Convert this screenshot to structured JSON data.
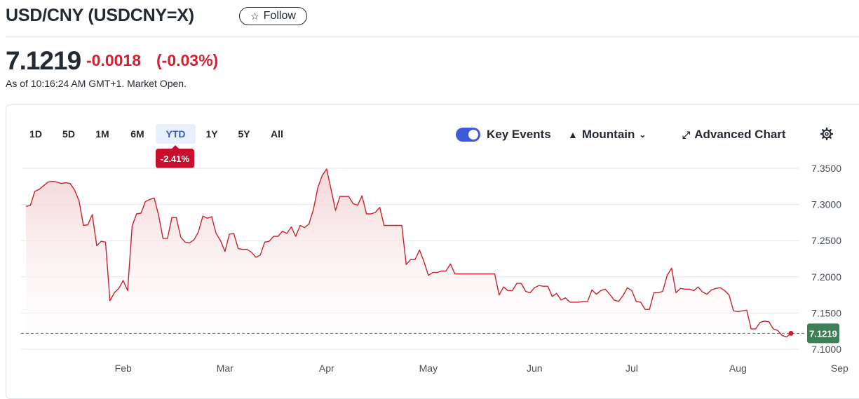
{
  "header": {
    "title": "USD/CNY (USDCNY=X)",
    "follow_label": "Follow"
  },
  "quote": {
    "price": "7.1219",
    "change": "-0.0018",
    "change_pct": "(-0.03%)",
    "as_of": "As of 10:16:24 AM GMT+1. Market Open."
  },
  "toolbar": {
    "ranges": [
      "1D",
      "5D",
      "1M",
      "6M",
      "YTD",
      "1Y",
      "5Y",
      "All"
    ],
    "active_range": "YTD",
    "ytd_change": "-2.41%",
    "key_events_label": "Key Events",
    "key_events_on": true,
    "chart_type_label": "Mountain",
    "advanced_chart_label": "Advanced Chart"
  },
  "colors": {
    "line": "#c8222f",
    "fill_top": "#f3d4d6",
    "positive_badge": "#3d7f56",
    "accent": "#3d5bd9",
    "negative": "#d1202f"
  },
  "chart_data": {
    "type": "area",
    "ylim": [
      7.1,
      7.35
    ],
    "yticks": [
      "7.3500",
      "7.3000",
      "7.2500",
      "7.2000",
      "7.1500",
      "7.1000"
    ],
    "xticks": [
      "Feb",
      "Mar",
      "Apr",
      "May",
      "Jun",
      "Jul",
      "Aug",
      "Sep"
    ],
    "last_value": "7.1219",
    "reference_value": 7.1219,
    "grid": true,
    "series": [
      {
        "values": [
          7.2975,
          7.2985,
          7.318,
          7.321,
          7.326,
          7.331,
          7.332,
          7.331,
          7.329,
          7.33,
          7.329,
          7.32,
          7.305,
          7.271,
          7.272,
          7.286,
          7.243,
          7.249,
          7.248,
          7.167,
          7.178,
          7.184,
          7.195,
          7.181,
          7.27,
          7.287,
          7.288,
          7.304,
          7.307,
          7.309,
          7.285,
          7.253,
          7.253,
          7.282,
          7.282,
          7.255,
          7.248,
          7.247,
          7.251,
          7.262,
          7.284,
          7.281,
          7.283,
          7.26,
          7.25,
          7.235,
          7.259,
          7.26,
          7.239,
          7.238,
          7.238,
          7.234,
          7.227,
          7.23,
          7.248,
          7.249,
          7.256,
          7.256,
          7.263,
          7.26,
          7.269,
          7.256,
          7.271,
          7.268,
          7.273,
          7.293,
          7.323,
          7.34,
          7.349,
          7.321,
          7.292,
          7.311,
          7.311,
          7.311,
          7.301,
          7.299,
          7.312,
          7.287,
          7.287,
          7.289,
          7.296,
          7.271,
          7.271,
          7.271,
          7.271,
          7.271,
          7.217,
          7.224,
          7.224,
          7.237,
          7.221,
          7.202,
          7.206,
          7.206,
          7.208,
          7.208,
          7.218,
          7.204,
          7.204,
          7.204,
          7.204,
          7.204,
          7.204,
          7.204,
          7.204,
          7.204,
          7.204,
          7.175,
          7.186,
          7.181,
          7.181,
          7.191,
          7.191,
          7.18,
          7.178,
          7.185,
          7.188,
          7.187,
          7.187,
          7.173,
          7.177,
          7.168,
          7.171,
          7.165,
          7.165,
          7.165,
          7.166,
          7.166,
          7.182,
          7.176,
          7.181,
          7.183,
          7.176,
          7.168,
          7.166,
          7.174,
          7.185,
          7.181,
          7.166,
          7.165,
          7.155,
          7.155,
          7.178,
          7.178,
          7.18,
          7.202,
          7.212,
          7.178,
          7.184,
          7.183,
          7.183,
          7.181,
          7.186,
          7.179,
          7.176,
          7.182,
          7.184,
          7.185,
          7.181,
          7.175,
          7.153,
          7.152,
          7.153,
          7.154,
          7.128,
          7.128,
          7.137,
          7.139,
          7.138,
          7.128,
          7.126,
          7.119,
          7.117,
          7.1219
        ]
      }
    ]
  }
}
